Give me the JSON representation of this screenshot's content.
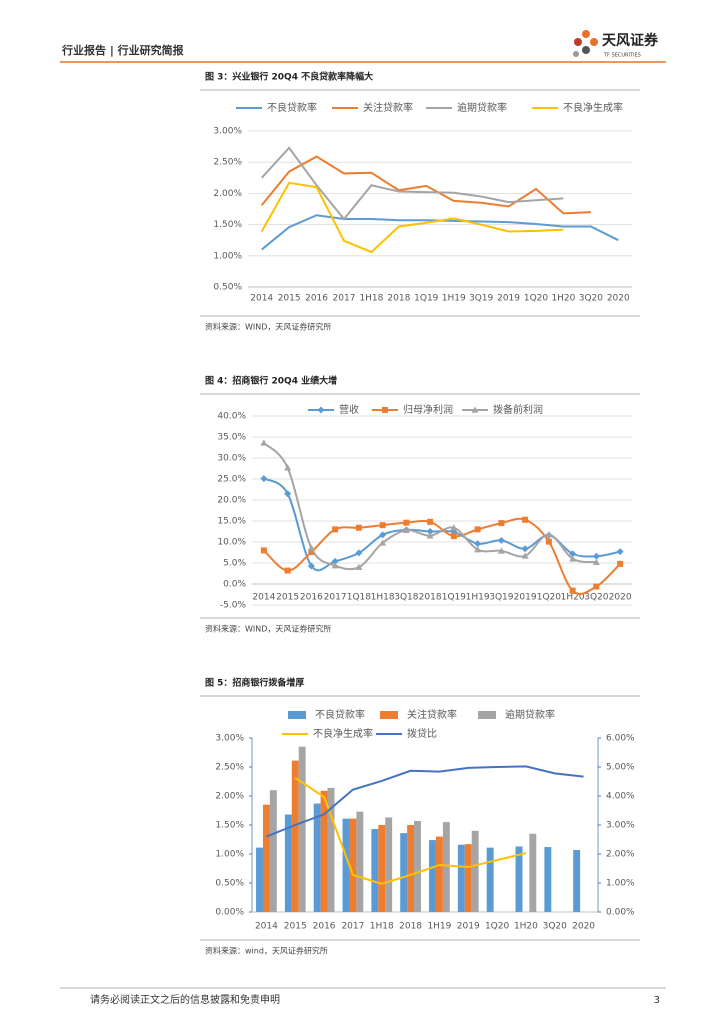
{
  "header": {
    "title": "行业报告 | 行业研究简报",
    "logo": "天风证券",
    "logo_sub": "TF SECURITIES"
  },
  "footer": {
    "disclaimer": "请务必阅读正文之后的信息披露和免责申明",
    "page": "3"
  },
  "chart_data": [
    {
      "type": "line",
      "title": "图 3：兴业银行 20Q4 不良贷款率降幅大",
      "source": "资料来源：WIND，天风证券研究所",
      "categories": [
        "2014",
        "2015",
        "2016",
        "2017",
        "1H18",
        "2018",
        "1Q19",
        "1H19",
        "3Q19",
        "2019",
        "1Q20",
        "1H20",
        "3Q20",
        "2020"
      ],
      "ylim": [
        0.5,
        3.0
      ],
      "yticks": [
        {
          "value": 0.5,
          "label": "0.50%"
        },
        {
          "value": 1.0,
          "label": "1.00%"
        },
        {
          "value": 1.5,
          "label": "1.50%"
        },
        {
          "value": 2.0,
          "label": "2.00%"
        },
        {
          "value": 2.5,
          "label": "2.50%"
        },
        {
          "value": 3.0,
          "label": "3.00%"
        }
      ],
      "grid": true,
      "series": [
        {
          "name": "不良贷款率",
          "color": "#5b9bd5",
          "values": [
            1.1,
            1.46,
            1.65,
            1.59,
            1.59,
            1.57,
            1.57,
            1.56,
            1.55,
            1.54,
            1.51,
            1.47,
            1.47,
            1.25
          ]
        },
        {
          "name": "关注贷款率",
          "color": "#ed7d31",
          "values": [
            1.81,
            2.35,
            2.59,
            2.32,
            2.33,
            2.05,
            2.12,
            1.88,
            1.85,
            1.79,
            2.07,
            1.68,
            1.7,
            null
          ]
        },
        {
          "name": "逾期贷款率",
          "color": "#a5a5a5",
          "values": [
            2.25,
            2.73,
            2.13,
            1.59,
            2.13,
            2.03,
            2.02,
            2.01,
            1.95,
            1.86,
            1.89,
            1.92,
            null,
            null
          ]
        },
        {
          "name": "不良净生成率",
          "color": "#ffc000",
          "values": [
            1.39,
            2.17,
            2.1,
            1.24,
            1.06,
            1.47,
            1.53,
            1.6,
            1.5,
            1.39,
            1.4,
            1.42,
            null,
            null
          ]
        }
      ]
    },
    {
      "type": "line",
      "title": "图 4：招商银行 20Q4 业绩大增",
      "source": "资料来源：WIND，天风证券研究所",
      "smooth": true,
      "categories": [
        "2014",
        "2015",
        "2016",
        "2017",
        "1Q18",
        "1H18",
        "3Q18",
        "2018",
        "1Q19",
        "1H19",
        "3Q19",
        "2019",
        "1Q20",
        "1H20",
        "3Q20",
        "2020"
      ],
      "ylim": [
        -5,
        40
      ],
      "yticks": [
        {
          "value": -5,
          "label": "-5.0%"
        },
        {
          "value": 0,
          "label": "0.0%"
        },
        {
          "value": 5,
          "label": "5.0%"
        },
        {
          "value": 10,
          "label": "10.0%"
        },
        {
          "value": 15,
          "label": "15.0%"
        },
        {
          "value": 20,
          "label": "20.0%"
        },
        {
          "value": 25,
          "label": "25.0%"
        },
        {
          "value": 30,
          "label": "30.0%"
        },
        {
          "value": 35,
          "label": "35.0%"
        },
        {
          "value": 40,
          "label": "40.0%"
        }
      ],
      "grid": true,
      "series": [
        {
          "name": "营收",
          "color": "#5b9bd5",
          "marker": "diamond",
          "values": [
            25.1,
            21.5,
            4.3,
            5.4,
            7.4,
            11.7,
            12.9,
            12.5,
            12.4,
            9.6,
            10.4,
            8.4,
            11.6,
            7.2,
            6.6,
            7.7
          ]
        },
        {
          "name": "归母净利润",
          "color": "#ed7d31",
          "marker": "square",
          "values": [
            8.0,
            3.2,
            7.6,
            13.0,
            13.4,
            14.0,
            14.6,
            14.8,
            11.4,
            13.0,
            14.5,
            15.3,
            10.1,
            -1.6,
            -0.6,
            4.8
          ]
        },
        {
          "name": "拨备前利润",
          "color": "#a5a5a5",
          "marker": "triangle",
          "values": [
            33.6,
            27.7,
            8.6,
            4.4,
            4.0,
            9.8,
            12.8,
            11.5,
            13.4,
            8.2,
            7.9,
            6.7,
            11.8,
            6.0,
            5.2,
            null
          ]
        }
      ]
    },
    {
      "type": "bar",
      "title": "图 5：招商银行拨备增厚",
      "source": "资料来源：wind，天风证券研究所",
      "categories": [
        "2014",
        "2015",
        "2016",
        "2017",
        "1H18",
        "2018",
        "1H19",
        "2019",
        "1Q20",
        "1H20",
        "3Q20",
        "2020"
      ],
      "ylim": [
        0,
        3.0
      ],
      "yticks": [
        {
          "value": 0,
          "label": "0.00%"
        },
        {
          "value": 0.5,
          "label": "0.50%"
        },
        {
          "value": 1.0,
          "label": "1.00%"
        },
        {
          "value": 1.5,
          "label": "1.50%"
        },
        {
          "value": 2.0,
          "label": "2.00%"
        },
        {
          "value": 2.5,
          "label": "2.50%"
        },
        {
          "value": 3.0,
          "label": "3.00%"
        }
      ],
      "y2lim": [
        0,
        6.0
      ],
      "y2ticks": [
        {
          "value": 0,
          "label": "0.00%"
        },
        {
          "value": 1,
          "label": "1.00%"
        },
        {
          "value": 2,
          "label": "2.00%"
        },
        {
          "value": 3,
          "label": "3.00%"
        },
        {
          "value": 4,
          "label": "4.00%"
        },
        {
          "value": 5,
          "label": "5.00%"
        },
        {
          "value": 6,
          "label": "6.00%"
        }
      ],
      "grid": false,
      "series": [
        {
          "name": "不良贷款率",
          "color": "#5b9bd5",
          "values": [
            1.11,
            1.68,
            1.87,
            1.61,
            1.43,
            1.36,
            1.24,
            1.16,
            1.11,
            1.13,
            1.12,
            1.07
          ]
        },
        {
          "name": "关注贷款率",
          "color": "#ed7d31",
          "values": [
            1.85,
            2.61,
            2.09,
            1.61,
            1.5,
            1.5,
            1.3,
            1.17,
            null,
            null,
            null,
            null
          ]
        },
        {
          "name": "逾期贷款率",
          "color": "#a5a5a5",
          "values": [
            2.1,
            2.85,
            2.14,
            1.73,
            1.63,
            1.57,
            1.55,
            1.4,
            null,
            1.35,
            null,
            null
          ]
        },
        {
          "name": "不良净生成率",
          "color": "#ffc000",
          "type": "line",
          "axis": "y2",
          "values": [
            null,
            4.62,
            3.97,
            1.28,
            0.97,
            1.28,
            1.62,
            1.55,
            1.79,
            2.03,
            null,
            null
          ]
        },
        {
          "name": "拨贷比",
          "color": "#4472c4",
          "type": "line",
          "axis": "y2",
          "values": [
            2.6,
            3.0,
            3.37,
            4.22,
            4.52,
            4.87,
            4.84,
            4.97,
            5.0,
            5.02,
            4.78,
            4.67
          ]
        }
      ]
    }
  ]
}
